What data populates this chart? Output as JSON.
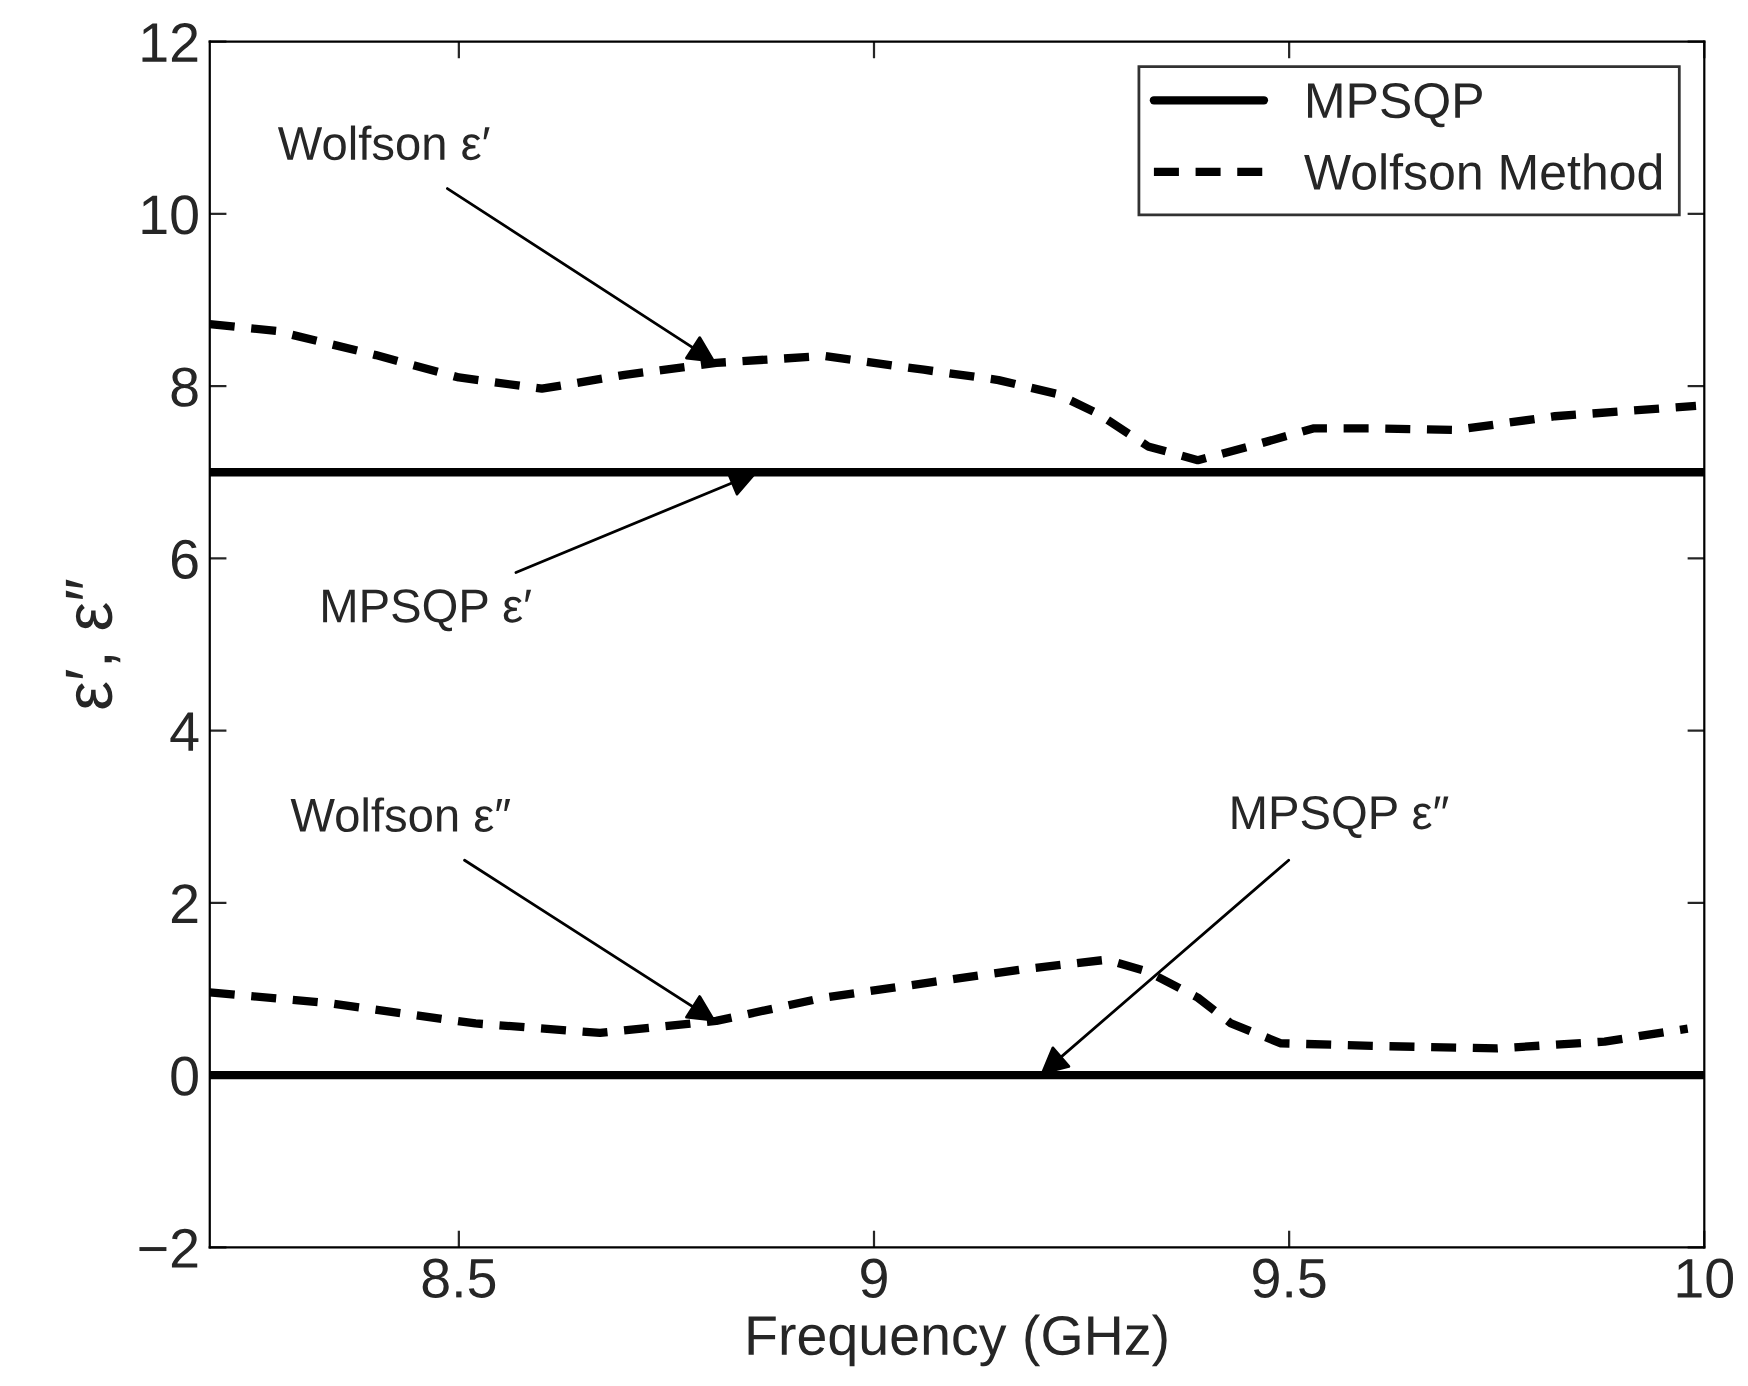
{
  "chart_data": {
    "type": "line",
    "xlabel": "Frequency (GHz)",
    "ylabel": "ε′, ε″",
    "xlim": [
      8.2,
      10
    ],
    "xticks": [
      8.5,
      9,
      9.5,
      10
    ],
    "ylim": [
      -2,
      12
    ],
    "yticks": [
      {
        "value": -2,
        "label": "−2"
      },
      0,
      2,
      4,
      6,
      8,
      10,
      12
    ],
    "grid": false,
    "legend": "top right",
    "series": [
      {
        "name": "MPSQP",
        "color": "#000000",
        "line_style": "solid",
        "x": [
          8.2,
          10
        ],
        "values": [
          7,
          7
        ]
      },
      {
        "color": "#000000",
        "line_style": "solid",
        "x": [
          8.2,
          10
        ],
        "values": [
          0,
          0
        ]
      },
      {
        "name": "Wolfson Method",
        "color": "#000000",
        "line_style": "dashed",
        "x": [
          8.2,
          8.28,
          8.4,
          8.5,
          8.6,
          8.7,
          8.81,
          8.94,
          9.06,
          9.15,
          9.22,
          9.27,
          9.33,
          9.39,
          9.46,
          9.53,
          9.6,
          9.7,
          9.82,
          9.99
        ],
        "values": [
          8.72,
          8.64,
          8.36,
          8.1,
          7.97,
          8.13,
          8.27,
          8.35,
          8.19,
          8.07,
          7.91,
          7.68,
          7.3,
          7.14,
          7.32,
          7.51,
          7.51,
          7.49,
          7.65,
          7.77
        ]
      },
      {
        "color": "#000000",
        "line_style": "dashed",
        "x": [
          8.2,
          8.34,
          8.52,
          8.67,
          8.81,
          8.94,
          9.07,
          9.18,
          9.28,
          9.33,
          9.39,
          9.43,
          9.49,
          9.6,
          9.75,
          9.88,
          9.98
        ],
        "values": [
          0.96,
          0.84,
          0.6,
          0.49,
          0.63,
          0.9,
          1.08,
          1.23,
          1.34,
          1.2,
          0.9,
          0.6,
          0.37,
          0.34,
          0.31,
          0.39,
          0.54
        ]
      }
    ],
    "annotations": [
      {
        "text": "Wolfson ε′",
        "x": 8.81,
        "y": 8.27
      },
      {
        "text": "MPSQP ε′",
        "x": 8.86,
        "y": 7
      },
      {
        "text": "Wolfson ε″",
        "x": 8.81,
        "y": 0.62
      },
      {
        "text": "MPSQP ε″",
        "x": 9.2,
        "y": 0
      }
    ]
  }
}
